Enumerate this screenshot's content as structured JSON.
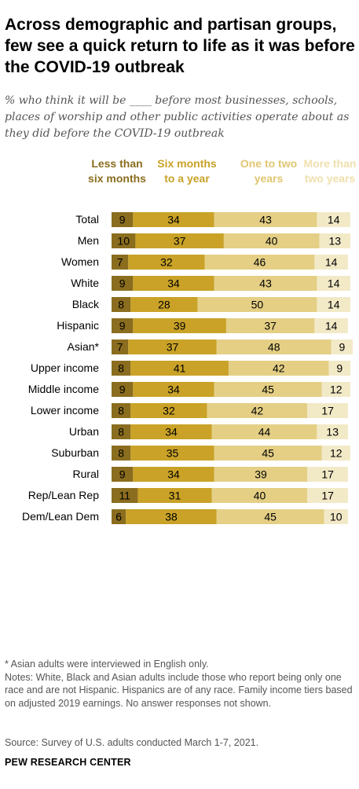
{
  "title": "Across demographic and partisan groups, few see a quick return to life as it was before the COVID-19 outbreak",
  "subtitle": "% who think it will be ____ before most businesses, schools, places of worship and other public activities operate about as they did before the COVID-19 outbreak",
  "chart_data": {
    "type": "bar",
    "stacked": true,
    "orientation": "horizontal",
    "scale_max": 100,
    "column_headers": [
      "Less than six months",
      "Six months to a year",
      "One to two years",
      "More than two years"
    ],
    "colors": [
      "#8a6d1e",
      "#c9a227",
      "#e4cf85",
      "#f2e9c7"
    ],
    "categories": [
      "Total",
      "Men",
      "Women",
      "White",
      "Black",
      "Hispanic",
      "Asian*",
      "Upper income",
      "Middle income",
      "Lower income",
      "Urban",
      "Suburban",
      "Rural",
      "Rep/Lean Rep",
      "Dem/Lean Dem"
    ],
    "groups": [
      [
        0
      ],
      [
        1,
        2
      ],
      [
        3,
        4,
        5,
        6
      ],
      [
        7,
        8,
        9
      ],
      [
        10,
        11,
        12
      ],
      [
        13,
        14
      ]
    ],
    "series": [
      {
        "name": "Less than six months",
        "values": [
          9,
          10,
          7,
          9,
          8,
          9,
          7,
          8,
          9,
          8,
          8,
          8,
          9,
          11,
          6
        ]
      },
      {
        "name": "Six months to a year",
        "values": [
          34,
          37,
          32,
          34,
          28,
          39,
          37,
          41,
          34,
          32,
          34,
          35,
          34,
          31,
          38
        ]
      },
      {
        "name": "One to two years",
        "values": [
          43,
          40,
          46,
          43,
          50,
          37,
          48,
          42,
          45,
          42,
          44,
          45,
          39,
          40,
          45
        ]
      },
      {
        "name": "More than two years",
        "values": [
          14,
          13,
          14,
          14,
          14,
          14,
          9,
          9,
          12,
          17,
          13,
          12,
          17,
          17,
          10
        ]
      }
    ]
  },
  "notes": [
    "* Asian adults were interviewed in English only.",
    "Notes: White, Black and Asian adults include those who report being only one race and are not Hispanic. Hispanics are of any race. Family income tiers based on adjusted 2019 earnings. No answer responses not shown."
  ],
  "source": "Source: Survey of U.S. adults conducted March 1-7, 2021.",
  "footer": "PEW RESEARCH CENTER"
}
